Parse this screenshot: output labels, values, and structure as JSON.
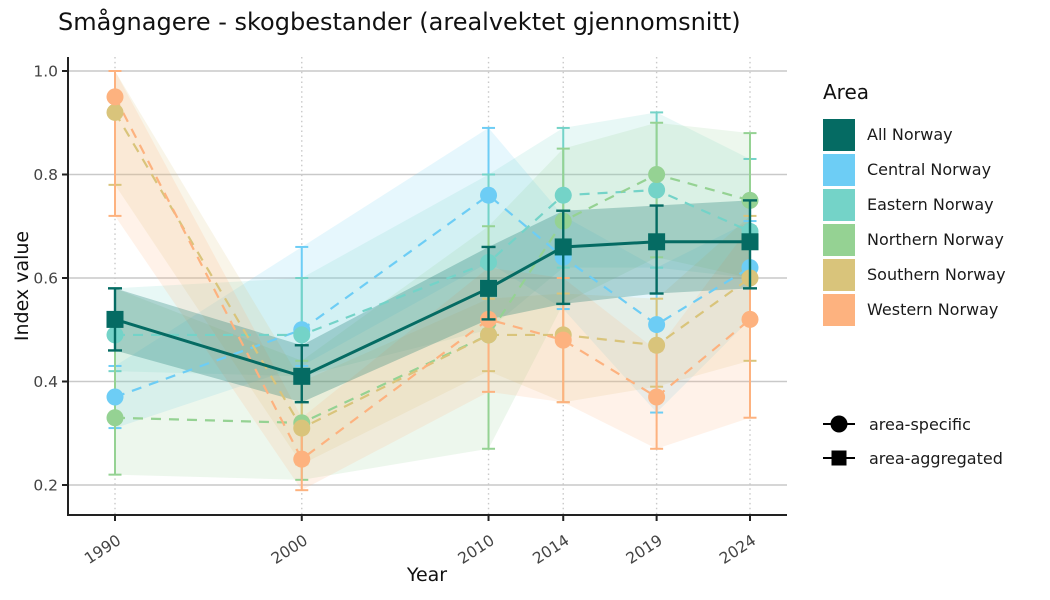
{
  "title": "Smågnagere - skogbestander (arealvektet gjennomsnitt)",
  "chart_data": {
    "type": "line",
    "x": [
      1990,
      2000,
      2010,
      2014,
      2019,
      2024
    ],
    "xlabel": "Year",
    "ylabel": "Index value",
    "yticks": [
      0.2,
      0.4,
      0.6,
      0.8,
      1.0
    ],
    "ylim": [
      0.14,
      1.03
    ],
    "grid": "solid horizontal gridlines at yticks, dotted vertical gridlines at year ticks",
    "legend_title": "Area",
    "legend_position": "right",
    "shape_legend": [
      {
        "shape": "circle",
        "label": "area-specific"
      },
      {
        "shape": "square",
        "label": "area-aggregated"
      }
    ],
    "series": [
      {
        "name": "All Norway",
        "color": "#056b63",
        "marker": "square",
        "linestyle": "solid",
        "aggregation": "area-aggregated",
        "values": [
          0.52,
          0.41,
          0.58,
          0.66,
          0.67,
          0.67
        ],
        "ci_low": [
          0.46,
          0.36,
          0.52,
          0.55,
          0.57,
          0.58
        ],
        "ci_high": [
          0.58,
          0.47,
          0.66,
          0.73,
          0.74,
          0.75
        ]
      },
      {
        "name": "Central Norway",
        "color": "#6dcdf5",
        "marker": "circle",
        "linestyle": "dashed",
        "aggregation": "area-specific",
        "values": [
          0.37,
          0.5,
          0.76,
          0.64,
          0.51,
          0.62
        ],
        "ci_low": [
          0.31,
          0.43,
          0.63,
          0.54,
          0.34,
          0.52
        ],
        "ci_high": [
          0.43,
          0.66,
          0.89,
          0.72,
          0.62,
          0.71
        ]
      },
      {
        "name": "Eastern Norway",
        "color": "#74d3c8",
        "marker": "circle",
        "linestyle": "dashed",
        "aggregation": "area-specific",
        "values": [
          0.49,
          0.49,
          0.63,
          0.76,
          0.77,
          0.69
        ],
        "ci_low": [
          0.42,
          0.41,
          0.5,
          0.62,
          0.62,
          0.6
        ],
        "ci_high": [
          0.58,
          0.6,
          0.8,
          0.89,
          0.92,
          0.83
        ]
      },
      {
        "name": "Northern Norway",
        "color": "#95d293",
        "marker": "circle",
        "linestyle": "dashed",
        "aggregation": "area-specific",
        "values": [
          0.33,
          0.32,
          0.49,
          0.71,
          0.8,
          0.75
        ],
        "ci_low": [
          0.22,
          0.21,
          0.27,
          0.55,
          0.64,
          0.6
        ],
        "ci_high": [
          0.58,
          0.44,
          0.7,
          0.85,
          0.9,
          0.88
        ]
      },
      {
        "name": "Southern Norway",
        "color": "#d9c47b",
        "marker": "circle",
        "linestyle": "dashed",
        "aggregation": "area-specific",
        "values": [
          0.92,
          0.31,
          0.49,
          0.49,
          0.47,
          0.6
        ],
        "ci_low": [
          0.78,
          0.24,
          0.42,
          0.36,
          0.39,
          0.44
        ],
        "ci_high": [
          1.0,
          0.4,
          0.56,
          0.57,
          0.56,
          0.72
        ]
      },
      {
        "name": "Western Norway",
        "color": "#fdb27f",
        "marker": "circle",
        "linestyle": "dashed",
        "aggregation": "area-specific",
        "values": [
          0.95,
          0.25,
          0.52,
          0.48,
          0.37,
          0.52
        ],
        "ci_low": [
          0.72,
          0.19,
          0.38,
          0.36,
          0.27,
          0.33
        ],
        "ci_high": [
          1.0,
          0.33,
          0.62,
          0.6,
          0.46,
          0.7
        ]
      }
    ]
  }
}
